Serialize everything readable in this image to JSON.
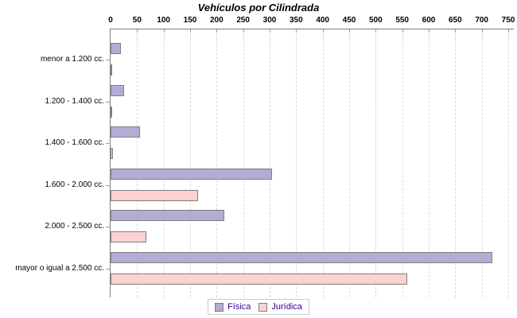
{
  "chart_data": {
    "type": "bar",
    "orientation": "horizontal",
    "title": "Vehículos por Cilindrada",
    "categories": [
      "menor a 1.200 cc.",
      "1.200 - 1.400 cc.",
      "1.400 - 1.600 cc.",
      "1.600 - 2.000 cc.",
      "2.000 - 2.500 cc.",
      "mayor o igual a 2.500 cc."
    ],
    "series": [
      {
        "name": "Física",
        "color": "#b5abd5",
        "values": [
          20,
          25,
          55,
          305,
          215,
          720
        ]
      },
      {
        "name": "Jurídica",
        "color": "#fbd1d1",
        "values": [
          2,
          1,
          5,
          165,
          67,
          560
        ]
      }
    ],
    "xlim": [
      0,
      750
    ],
    "x_ticks": [
      0,
      50,
      100,
      150,
      200,
      250,
      300,
      350,
      400,
      450,
      500,
      550,
      600,
      650,
      700,
      750
    ],
    "grid": "vertical-dashed",
    "legend_position": "bottom-center",
    "bar_border_color": "#7f7f7f",
    "gridline_color": "#d9d9d9",
    "axis_color": "#7f7f7f",
    "legend_text_color": "#330099"
  },
  "legend": {
    "items": [
      {
        "label": "Física"
      },
      {
        "label": "Jurídica"
      }
    ]
  }
}
